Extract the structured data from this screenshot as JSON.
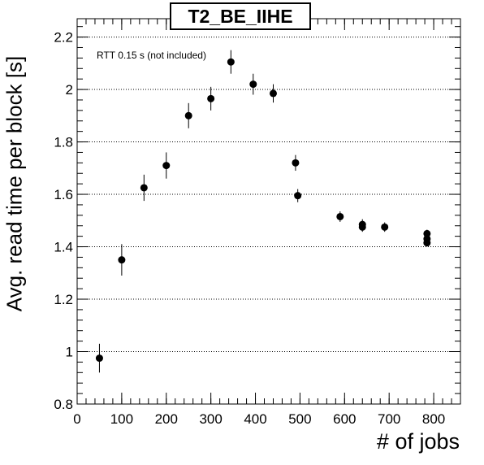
{
  "chart_data": {
    "type": "scatter",
    "title": "T2_BE_IIHE",
    "xlabel": "# of jobs",
    "ylabel": "Avg. read time per block [s]",
    "annotation": "RTT 0.15 s (not included)",
    "xlim": [
      0,
      860
    ],
    "ylim": [
      0.8,
      2.27
    ],
    "x_ticks": [
      0,
      100,
      200,
      300,
      400,
      500,
      600,
      700,
      800
    ],
    "y_ticks": [
      0.8,
      1,
      1.2,
      1.4,
      1.6,
      1.8,
      2,
      2.2
    ],
    "y_tick_labels": [
      "0.8",
      "1",
      "1.2",
      "1.4",
      "1.6",
      "1.8",
      "2",
      "2.2"
    ],
    "grid": "y-dotted",
    "marker_color": "#000000",
    "points": [
      {
        "x": 50,
        "y": 0.975,
        "err": 0.055
      },
      {
        "x": 100,
        "y": 1.35,
        "err": 0.06
      },
      {
        "x": 150,
        "y": 1.625,
        "err": 0.05
      },
      {
        "x": 200,
        "y": 1.71,
        "err": 0.05
      },
      {
        "x": 250,
        "y": 1.9,
        "err": 0.048
      },
      {
        "x": 300,
        "y": 1.965,
        "err": 0.045
      },
      {
        "x": 345,
        "y": 2.105,
        "err": 0.045
      },
      {
        "x": 395,
        "y": 2.02,
        "err": 0.04
      },
      {
        "x": 440,
        "y": 1.985,
        "err": 0.035
      },
      {
        "x": 490,
        "y": 1.72,
        "err": 0.03
      },
      {
        "x": 495,
        "y": 1.595,
        "err": 0.025
      },
      {
        "x": 590,
        "y": 1.515,
        "err": 0.02
      },
      {
        "x": 640,
        "y": 1.485,
        "err": 0.02
      },
      {
        "x": 640,
        "y": 1.475,
        "err": 0.018
      },
      {
        "x": 690,
        "y": 1.475,
        "err": 0.018
      },
      {
        "x": 785,
        "y": 1.45,
        "err": 0.015
      },
      {
        "x": 785,
        "y": 1.43,
        "err": 0.015
      },
      {
        "x": 785,
        "y": 1.415,
        "err": 0.012
      }
    ]
  }
}
